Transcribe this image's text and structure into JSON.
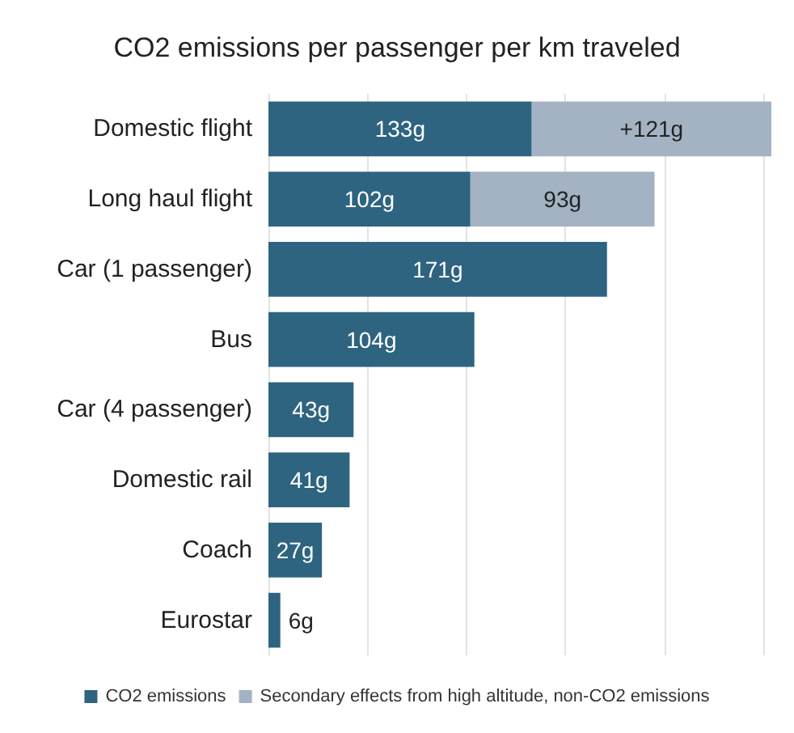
{
  "chart_data": {
    "type": "bar",
    "orientation": "horizontal",
    "stacked": true,
    "title": "CO2 emissions per passenger per km traveled",
    "categories": [
      "Domestic flight",
      "Long haul flight",
      "Car (1 passenger)",
      "Bus",
      "Car (4 passenger)",
      "Domestic rail",
      "Coach",
      "Eurostar"
    ],
    "series": [
      {
        "name": "CO2 emissions",
        "color": "#2e6480",
        "values": [
          133,
          102,
          171,
          104,
          43,
          41,
          27,
          6
        ],
        "value_labels": [
          "133g",
          "102g",
          "171g",
          "104g",
          "43g",
          "41g",
          "27g",
          "6g"
        ]
      },
      {
        "name": "Secondary effects from high altitude, non-CO2 emissions",
        "color": "#a3b3c4",
        "values": [
          121,
          93,
          null,
          null,
          null,
          null,
          null,
          null
        ],
        "value_labels": [
          "+121g",
          "93g",
          null,
          null,
          null,
          null,
          null,
          null
        ]
      }
    ],
    "xlim": [
      0,
      254
    ],
    "xticks": [
      {
        "value": 0,
        "label": null
      },
      {
        "value": 50,
        "label": null
      },
      {
        "value": 100,
        "label": null
      },
      {
        "value": 150,
        "label": null
      },
      {
        "value": 200,
        "label": null
      },
      {
        "value": 250,
        "label": null
      }
    ],
    "tick_labels": "y",
    "grid": "x",
    "legend": "bottom"
  }
}
